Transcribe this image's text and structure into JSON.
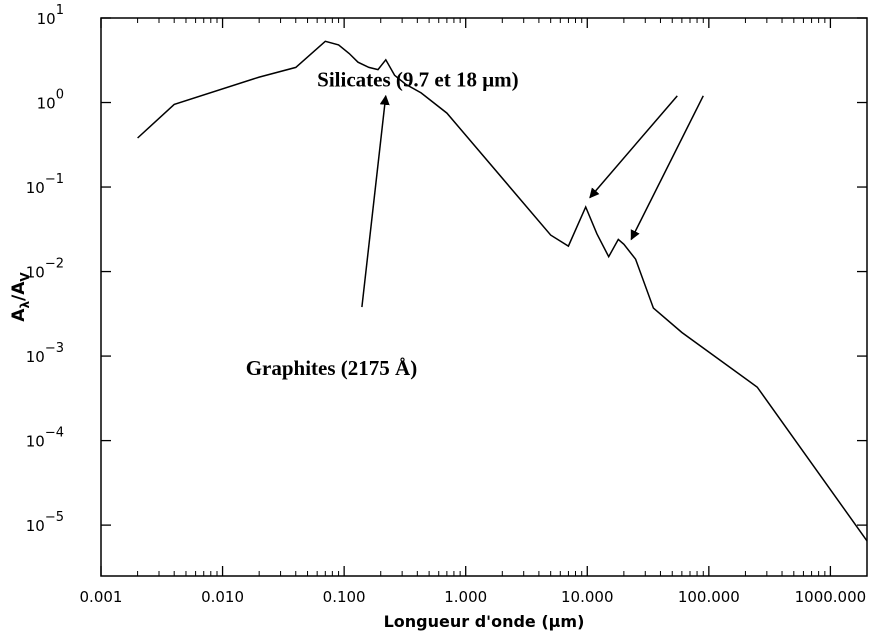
{
  "chart_data": {
    "type": "line",
    "xlabel": "Longueur d'onde (μm)",
    "ylabel": "Aλ/AV",
    "ylabel_parts": {
      "a1": "A",
      "s1": "λ",
      "sep": "/",
      "a2": "A",
      "s2": "V"
    },
    "x_scale": "log",
    "y_scale": "log",
    "xlim": [
      0.001,
      2000
    ],
    "ylim": [
      2.5e-06,
      10
    ],
    "grid": false,
    "x_ticks": [
      {
        "value": 0.001,
        "label": "0.001"
      },
      {
        "value": 0.01,
        "label": "0.010"
      },
      {
        "value": 0.1,
        "label": "0.100"
      },
      {
        "value": 1,
        "label": "1.000"
      },
      {
        "value": 10,
        "label": "10.000"
      },
      {
        "value": 100,
        "label": "100.000"
      },
      {
        "value": 1000,
        "label": "1000.000"
      }
    ],
    "y_ticks": [
      {
        "value": 10,
        "base": "10",
        "exp": "1"
      },
      {
        "value": 1,
        "base": "10",
        "exp": "0"
      },
      {
        "value": 0.1,
        "base": "10",
        "exp": "−1"
      },
      {
        "value": 0.01,
        "base": "10",
        "exp": "−2"
      },
      {
        "value": 0.001,
        "base": "10",
        "exp": "−3"
      },
      {
        "value": 0.0001,
        "base": "10",
        "exp": "−4"
      },
      {
        "value": 1e-05,
        "base": "10",
        "exp": "−5"
      }
    ],
    "series": [
      {
        "x": [
          0.002,
          0.004,
          0.02,
          0.04,
          0.07,
          0.09,
          0.11,
          0.13,
          0.16,
          0.19,
          0.22,
          0.26,
          0.32,
          0.43,
          0.7,
          5.0,
          7.0,
          9.7,
          12.0,
          15.0,
          18.0,
          20.0,
          25.0,
          35.0,
          60.0,
          250.0,
          2000.0
        ],
        "y": [
          0.38,
          0.95,
          2.0,
          2.6,
          5.3,
          4.8,
          3.8,
          3.0,
          2.6,
          2.45,
          3.2,
          2.1,
          1.65,
          1.3,
          0.75,
          0.027,
          0.02,
          0.058,
          0.028,
          0.015,
          0.024,
          0.021,
          0.014,
          0.0037,
          0.0019,
          0.00043,
          6.5e-06
        ]
      }
    ],
    "annotations": [
      {
        "text": "Graphites (2175 Å)",
        "text_x": 0.0155,
        "text_y": 0.0006,
        "arrows": [
          {
            "from": [
              0.14,
              0.0038
            ],
            "to": [
              0.22,
              1.2
            ]
          }
        ]
      },
      {
        "text": "Silicates (9.7 et 18 μm)",
        "text_x": 0.06,
        "text_y": 1.55,
        "arrows": [
          {
            "from": [
              55,
              1.2
            ],
            "to": [
              10.5,
              0.075
            ]
          },
          {
            "from": [
              90,
              1.2
            ],
            "to": [
              23,
              0.024
            ]
          }
        ]
      }
    ]
  }
}
